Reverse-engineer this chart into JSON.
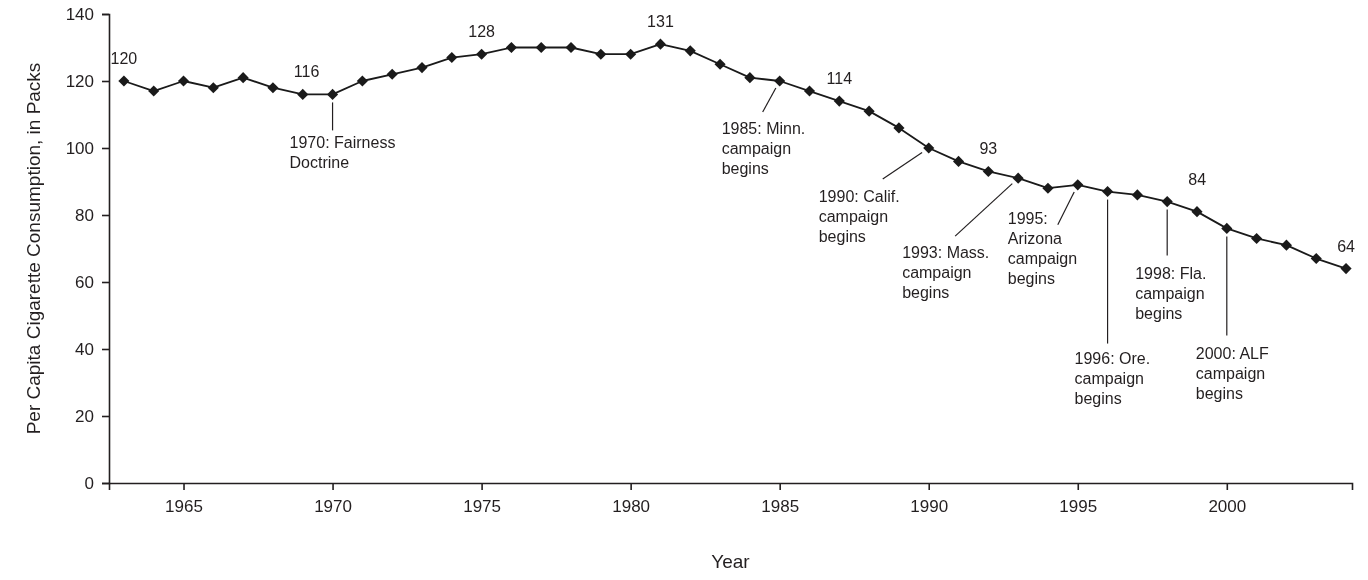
{
  "chart_data": {
    "type": "line",
    "xlabel": "Year",
    "ylabel": "Per Capita Cigarette Consumption, in Packs",
    "x": [
      1963,
      1964,
      1965,
      1966,
      1967,
      1968,
      1969,
      1970,
      1971,
      1972,
      1973,
      1974,
      1975,
      1976,
      1977,
      1978,
      1979,
      1980,
      1981,
      1982,
      1983,
      1984,
      1985,
      1986,
      1987,
      1988,
      1989,
      1990,
      1991,
      1992,
      1993,
      1994,
      1995,
      1996,
      1997,
      1998,
      1999,
      2000,
      2001,
      2002,
      2003,
      2004
    ],
    "series": [
      {
        "color": "#1a1a1a",
        "values": [
          120,
          117,
          120,
          118,
          121,
          118,
          116,
          116,
          120,
          122,
          124,
          127,
          128,
          130,
          130,
          130,
          128,
          128,
          131,
          129,
          125,
          121,
          120,
          117,
          114,
          111,
          106,
          100,
          96,
          93,
          91,
          88,
          89,
          87,
          86,
          84,
          81,
          76,
          73,
          71,
          67,
          64
        ],
        "value_labels": [
          "120",
          null,
          null,
          null,
          null,
          null,
          null,
          "116",
          null,
          null,
          null,
          null,
          "128",
          null,
          null,
          null,
          null,
          null,
          "131",
          null,
          null,
          null,
          null,
          null,
          "114",
          null,
          null,
          null,
          null,
          "93",
          null,
          null,
          null,
          null,
          null,
          "84",
          null,
          null,
          null,
          null,
          null,
          "64"
        ]
      }
    ],
    "xlim": [
      1962.5,
      2004.2
    ],
    "xticks": [
      1965,
      1970,
      1975,
      1980,
      1985,
      1990,
      1995,
      2000
    ],
    "ylim": [
      0,
      140
    ],
    "yticks": [
      0,
      20,
      40,
      60,
      80,
      100,
      120,
      140
    ],
    "grid": false,
    "marker": "diamond",
    "line_style": "solid",
    "annotations": [
      {
        "text": "1970: Fairness\nDoctrine",
        "x": 1970,
        "y": 116
      },
      {
        "text": "1985: Minn.\ncampaign\nbegins",
        "x": 1985,
        "y": 120
      },
      {
        "text": "1990: Calif.\ncampaign\nbegins",
        "x": 1990,
        "y": 100
      },
      {
        "text": "1993: Mass.\ncampaign\nbegins",
        "x": 1993,
        "y": 91
      },
      {
        "text": "1995:\nArizona\ncampaign\nbegins",
        "x": 1995,
        "y": 89
      },
      {
        "text": "1996: Ore.\ncampaign\nbegins",
        "x": 1996,
        "y": 87
      },
      {
        "text": "1998: Fla.\ncampaign\nbegins",
        "x": 1998,
        "y": 84
      },
      {
        "text": "2000: ALF\ncampaign\nbegins",
        "x": 2000,
        "y": 76
      }
    ]
  }
}
